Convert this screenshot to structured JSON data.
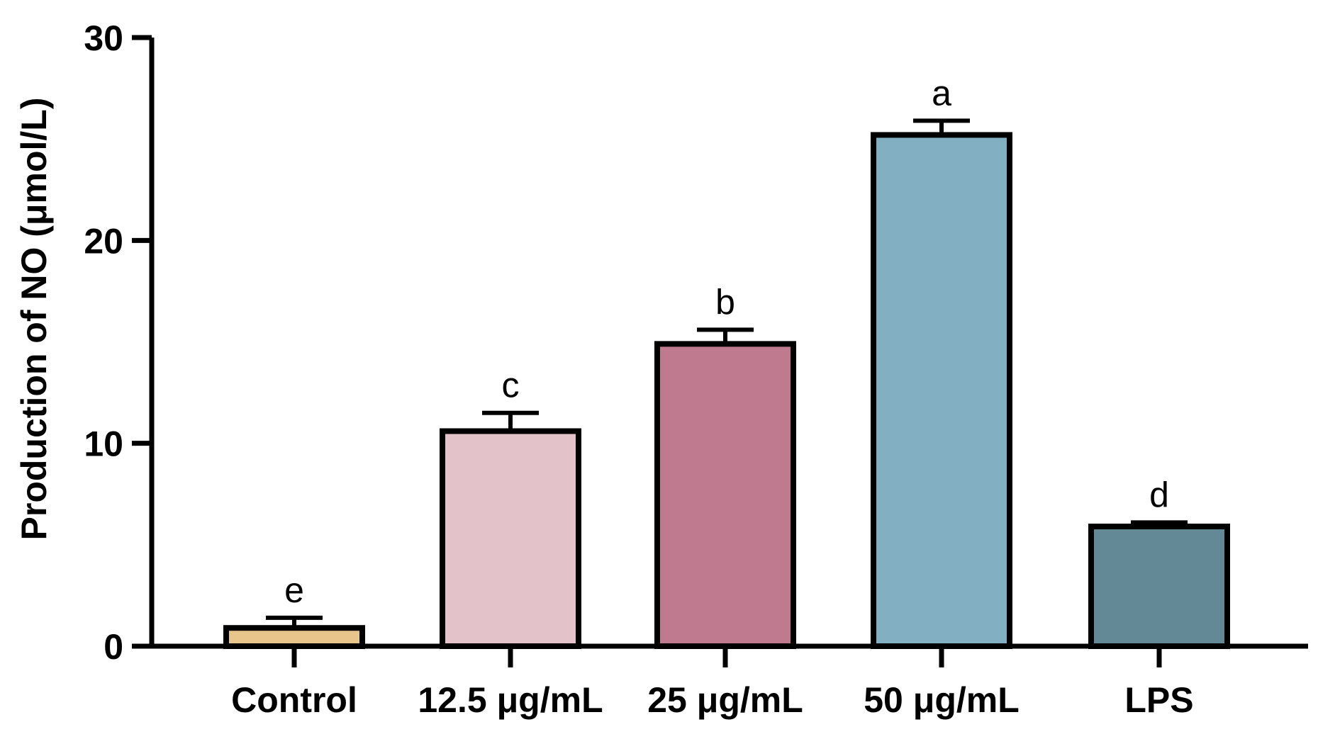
{
  "chart_data": {
    "type": "bar",
    "title": "",
    "xlabel": "",
    "ylabel": "Production of NO (μmol/L)",
    "ylim": [
      0,
      30
    ],
    "yticks": [
      0,
      10,
      20,
      30
    ],
    "grid": false,
    "categories": [
      "Control",
      "12.5 μg/mL",
      "25 μg/mL",
      "50 μg/mL",
      "LPS"
    ],
    "values": [
      0.9,
      10.6,
      14.9,
      25.2,
      5.9
    ],
    "errors": [
      0.5,
      0.9,
      0.7,
      0.7,
      0.2
    ],
    "significance_letters": [
      "e",
      "c",
      "b",
      "a",
      "d"
    ],
    "colors": [
      "#e8c58a",
      "#e3c2c9",
      "#c07a8f",
      "#82afc1",
      "#638896"
    ]
  }
}
